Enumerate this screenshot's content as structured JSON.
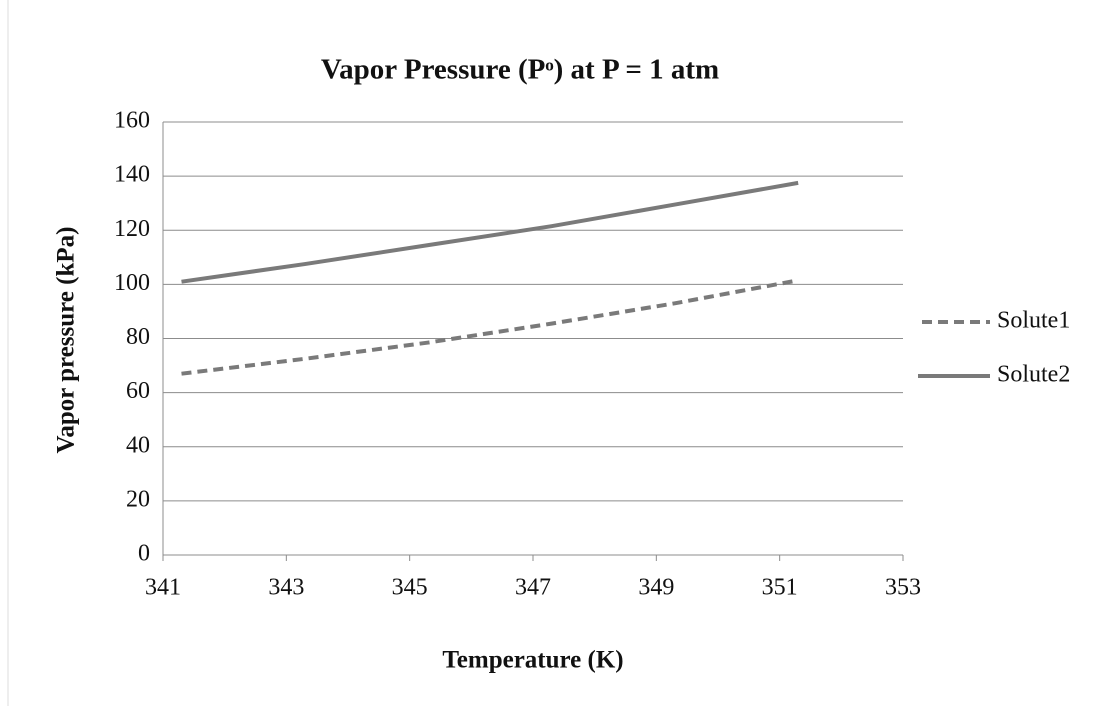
{
  "chart_data": {
    "type": "line",
    "title": "Vapor Pressure (Pᵒ) at P = 1 atm",
    "x_label": "Temperature (K)",
    "y_label": "Vapor pressure (kPa)",
    "x": [
      341.3,
      343.3,
      345.3,
      347.3,
      349.3,
      351.3
    ],
    "series": [
      {
        "name": "Solute1",
        "color": "#7a7a7a",
        "dash": true,
        "values": [
          67,
          72.5,
          78.5,
          85.5,
          93,
          101.5
        ]
      },
      {
        "name": "Solute2",
        "color": "#7a7a7a",
        "dash": false,
        "values": [
          101,
          107.5,
          114.5,
          121.5,
          129.5,
          137.5
        ]
      }
    ],
    "xlim": [
      341,
      353
    ],
    "xticks": [
      341,
      343,
      345,
      347,
      349,
      351,
      353
    ],
    "ylim": [
      0,
      160
    ],
    "yticks": [
      0,
      20,
      40,
      60,
      80,
      100,
      120,
      140,
      160
    ],
    "grid": true,
    "legend": "right"
  }
}
